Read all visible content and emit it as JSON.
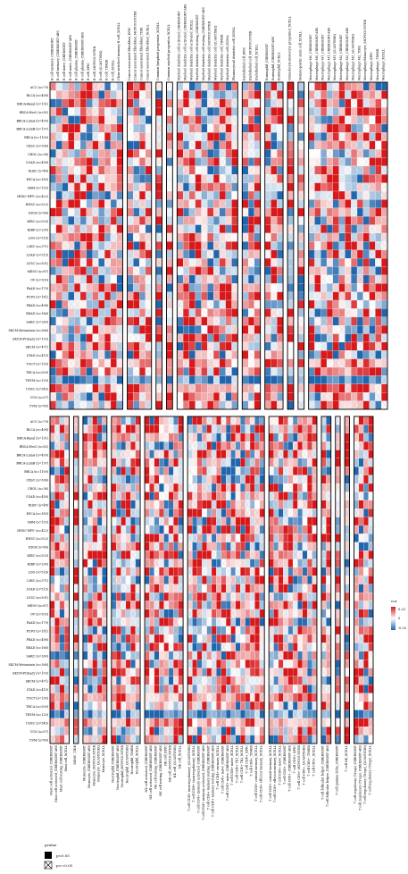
{
  "chart_data": {
    "type": "heatmap",
    "colorbar": {
      "title": "cor",
      "ticks": [
        0.25,
        0,
        -0.25
      ],
      "high_color": "#d7191c",
      "mid_color": "#ffffff",
      "low_color": "#2166ac"
    },
    "significance_legend": {
      "title": "pvalue",
      "items": [
        "p<0.05",
        "p>=0.05"
      ]
    },
    "rows": [
      "ACC (n=79)",
      "BLCA (n=408)",
      "BRCA-Basal (n=191)",
      "BRCA-Her2 (n=82)",
      "BRCA-LumA (n=499)",
      "BRCA-LumB (n=197)",
      "BRCA (n=1100)",
      "CESC (n=306)",
      "CHOL (n=36)",
      "COAD (n=458)",
      "DLBC (n=48)",
      "ESCA (n=185)",
      "GBM (n=153)",
      "HNSC-HPV- (n=422)",
      "HNSC (n=522)",
      "KICH (n=66)",
      "KIRC (n=533)",
      "KIRP (n=290)",
      "LGG (n=516)",
      "LIHC (n=371)",
      "LUAD (n=515)",
      "LUSC (n=501)",
      "MESO (n=87)",
      "OV (n=303)",
      "PAAD (n=179)",
      "PCPG (n=181)",
      "PRAD (n=498)",
      "READ (n=166)",
      "SARC (n=260)",
      "SKCM-Metastasis (n=368)",
      "SKCM-Primary (n=103)",
      "SKCM (n=471)",
      "STAD (n=415)",
      "TGCT (n=150)",
      "THCA (n=509)",
      "THYM (n=120)",
      "UCEC (n=545)",
      "UCS (n=57)",
      "UVM (n=80)"
    ],
    "top_groups": [
      [
        "B cell memory_CIBERSORT",
        "B cell memory_CIBERSORT-ABS",
        "B cell naive_CIBERSORT",
        "B cell naive_CIBERSORT-ABS",
        "B cell plasma_CIBERSORT",
        "B cell plasma_CIBERSORT-ABS",
        "B cell_EPIC",
        "B cell_MCPCOUNTER",
        "B cell_QUANTISEQ",
        "B cell_TIMER",
        "B cell_XCELL",
        "Class-switched memory B cell_XCELL"
      ],
      [
        "Cancer associated fibroblast_EPIC",
        "Cancer associated fibroblast_MCPCOUNTER",
        "Cancer associated fibroblast_TIDE",
        "Cancer associated fibroblast_XCELL"
      ],
      [
        "Common lymphoid progenitor_XCELL"
      ],
      [
        "Common myeloid progenitor_XCELL"
      ],
      [
        "Myeloid dendritic cell activated_CIBERSORT",
        "Myeloid dendritic cell activated_CIBERSORT-ABS",
        "Myeloid dendritic cell activated_XCELL",
        "Myeloid dendritic cell resting_CIBERSORT",
        "Myeloid dendritic cell resting_CIBERSORT-ABS",
        "Myeloid dendritic cell_MCPCOUNTER",
        "Myeloid dendritic cell_QUANTISEQ",
        "Myeloid dendritic cell_TIMER",
        "Myeloid dendritic cell_XCELL",
        "Plasmacytoid dendritic cell_XCELL"
      ],
      [
        "Endothelial cell_EPIC",
        "Endothelial cell_MCPCOUNTER",
        "Endothelial cell_XCELL"
      ],
      [
        "Eosinophil_CIBERSORT",
        "Eosinophil_CIBERSORT-ABS",
        "Eosinophil_XCELL"
      ],
      [
        "Granulocyte-monocyte progenitor_XCELL"
      ],
      [
        "Hematopoietic stem cell_XCELL"
      ],
      [
        "Macrophage M0_CIBERSORT",
        "Macrophage M0_CIBERSORT-ABS",
        "Macrophage M1_CIBERSORT",
        "Macrophage M1_CIBERSORT-ABS",
        "Macrophage M1_QUANTISEQ",
        "Macrophage M2_CIBERSORT",
        "Macrophage M2_CIBERSORT-ABS",
        "Macrophage M2_QUANTISEQ",
        "Macrophage M2_TIDE",
        "Macrophage/Monocyte_MCPCOUNTER",
        "Macrophage_EPIC",
        "Macrophage_TIMER",
        "Macrophage_XCELL"
      ]
    ],
    "bottom_groups": [
      [
        "Mast cell activated_CIBERSORT",
        "Mast cell activated_CIBERSORT-ABS",
        "Mast cell resting_CIBERSORT",
        "Mast cell_XCELL"
      ],
      [
        "MDSC_TIDE"
      ],
      [
        "Monocyte_CIBERSORT",
        "Monocyte_CIBERSORT-ABS",
        "Monocyte_MCPCOUNTER",
        "Monocyte_QUANTISEQ",
        "Monocyte_XCELL"
      ],
      [
        "Neutrophil_CIBERSORT",
        "Neutrophil_CIBERSORT-ABS",
        "Neutrophil_MCPCOUNTER",
        "Neutrophil_QUANTISEQ",
        "Neutrophil_TIMER",
        "Neutrophil_XCELL"
      ],
      [
        "NK cell activated_CIBERSORT",
        "NK cell activated_CIBERSORT-ABS",
        "NK cell resting_CIBERSORT",
        "NK cell resting_CIBERSORT-ABS",
        "NK cell_EPIC",
        "NK cell_MCPCOUNTER",
        "NK cell_QUANTISEQ",
        "NK cell_XCELL"
      ],
      [
        "T cell CD4+ (non-regulatory)_QUANTISEQ",
        "T cell CD4+ (non-regulatory)_XCELL",
        "T cell CD4+ memory activated_CIBERSORT",
        "T cell CD4+ memory activated_CIBERSORT-ABS",
        "T cell CD4+ memory resting_CIBERSORT",
        "T cell CD4+ memory resting_CIBERSORT-ABS",
        "T cell CD4+ memory_XCELL",
        "T cell CD4+ naive_CIBERSORT",
        "T cell CD4+ naive_CIBERSORT-ABS",
        "T cell CD4+ naive_XCELL",
        "T cell CD4+ Th1_XCELL",
        "T cell CD4+ Th2_XCELL",
        "T cell CD4+_EPIC",
        "T cell CD4+_TIMER",
        "T cell CD4+ central memory_XCELL",
        "T cell CD4+ effector memory_XCELL"
      ],
      [
        "T cell CD8+ central memory_XCELL",
        "T cell CD8+ effector memory_XCELL",
        "T cell CD8+ naive_XCELL",
        "T cell CD8+_CIBERSORT",
        "T cell CD8+_CIBERSORT-ABS",
        "T cell CD8+_EPIC",
        "T cell CD8+_MCPCOUNTER",
        "T cell CD8+_QUANTISEQ",
        "T cell CD8+_TIMER",
        "T cell CD8+_XCELL"
      ],
      [
        "T cell follicular helper_CIBERSORT",
        "T cell follicular helper_CIBERSORT-ABS"
      ],
      [
        "T cell gamma delta_CIBERSORT"
      ],
      [
        "T cell NK_XCELL"
      ],
      [
        "T cell regulatory (Tregs)_CIBERSORT",
        "T cell regulatory (Tregs)_CIBERSORT-ABS",
        "T cell regulatory (Tregs)_QUANTISEQ",
        "T cell regulatory (Tregs)_XCELL"
      ]
    ]
  }
}
